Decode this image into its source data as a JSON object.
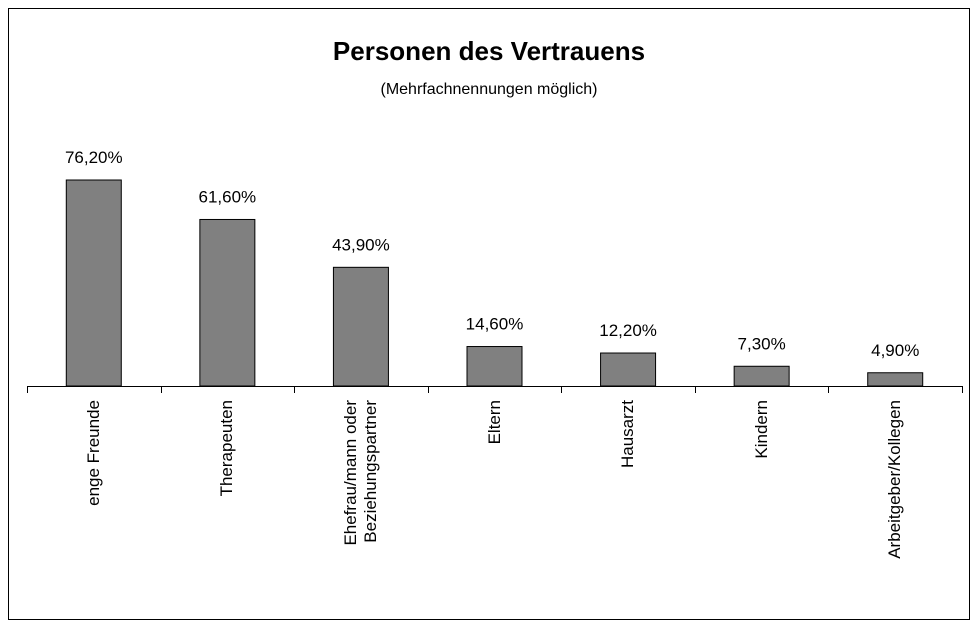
{
  "chart_data": {
    "type": "bar",
    "title": "Personen des Vertrauens",
    "subtitle": "(Mehrfachnennungen möglich)",
    "categories": [
      "enge Freunde",
      "Therapeuten",
      "Ehefrau/mann oder Beziehungspartner",
      "Eltern",
      "Hausarzt",
      "Kindern",
      "Arbeitgeber/Kollegen"
    ],
    "values": [
      76.2,
      61.6,
      43.9,
      14.6,
      12.2,
      7.3,
      4.9
    ],
    "value_labels": [
      "76,20%",
      "61,60%",
      "43,90%",
      "14,60%",
      "12,20%",
      "7,30%",
      "4,90%"
    ],
    "color": "#808080"
  }
}
